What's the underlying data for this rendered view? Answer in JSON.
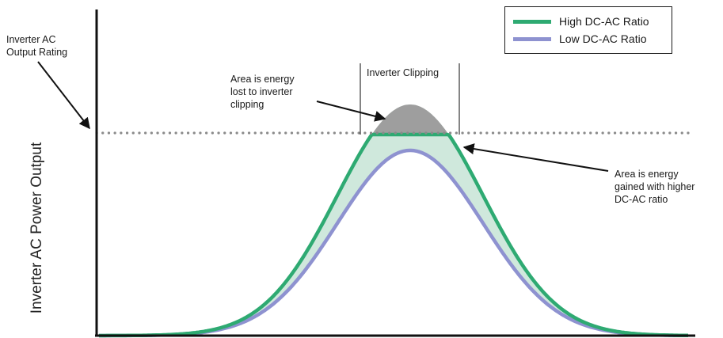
{
  "diagram": {
    "y_axis_label": "Inverter AC Power Output",
    "rating_label_line1": "Inverter AC",
    "rating_label_line2": "Output Rating",
    "clipping_label": "Inverter Clipping",
    "lost_note_line1": "Area is energy",
    "lost_note_line2": "lost to inverter",
    "lost_note_line3": "clipping",
    "gain_note_line1": "Area is energy",
    "gain_note_line2": "gained with higher",
    "gain_note_line3": "DC-AC ratio"
  },
  "legend": {
    "items": [
      {
        "label": "High DC-AC Ratio",
        "color": "#2eaa72"
      },
      {
        "label": "Low DC-AC Ratio",
        "color": "#8e92d0"
      }
    ]
  },
  "colors": {
    "high_line": "#2eaa72",
    "low_line": "#8e92d0",
    "gain_fill": "#cfe8dc",
    "clip_fill": "#9e9e9e",
    "axis": "#111111",
    "rating_dots": "#8a8a8a"
  }
}
